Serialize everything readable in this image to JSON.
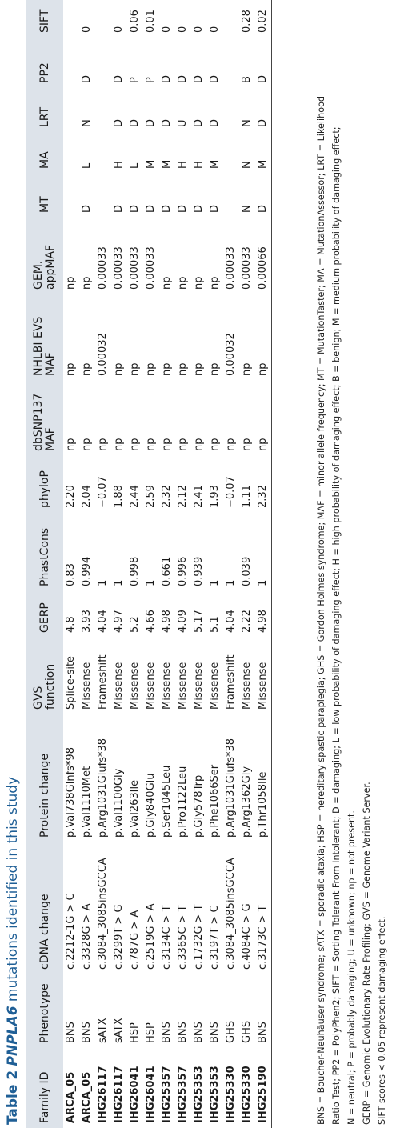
{
  "caption": {
    "label": "Table 2",
    "gene": "PNPLA6",
    "rest": "mutations identified in this study"
  },
  "columns": [
    "Family ID",
    "Phenotype",
    "cDNA change",
    "Protein change",
    "GVS function",
    "GERP",
    "PhastCons",
    "phyloP",
    "dbSNP137 MAF",
    "NHLBI EVS MAF",
    "GEM. appMAF",
    "MT",
    "MA",
    "LRT",
    "PP2",
    "SIFT"
  ],
  "rows": [
    [
      "ARCA_05",
      "BNS",
      "c.2212-1G > C",
      "p.Val738Glnfs*98",
      "Splice-site",
      "4.8",
      "0.83",
      "2.20",
      "np",
      "np",
      "np",
      "",
      "",
      "",
      "",
      ""
    ],
    [
      "ARCA_05",
      "BNS",
      "c.3328G > A",
      "p.Val1110Met",
      "Missense",
      "3.93",
      "0.994",
      "2.04",
      "np",
      "np",
      "np",
      "D",
      "L",
      "N",
      "D",
      "0"
    ],
    [
      "IHG26117",
      "sATX",
      "c.3084_3085insGCCA",
      "p.Arg1031Glufs*38",
      "Frameshift",
      "4.04",
      "1",
      "−0.07",
      "np",
      "0.00032",
      "0.00033",
      "",
      "",
      "",
      "",
      ""
    ],
    [
      "IHG26117",
      "sATX",
      "c.3299T > G",
      "p.Val1100Gly",
      "Missense",
      "4.97",
      "1",
      "1.88",
      "np",
      "np",
      "0.00033",
      "D",
      "H",
      "D",
      "D",
      "0"
    ],
    [
      "IHG26041",
      "HSP",
      "c.787G > A",
      "p.Val263Ile",
      "Missense",
      "5.2",
      "0.998",
      "2.44",
      "np",
      "np",
      "0.00033",
      "D",
      "L",
      "D",
      "P",
      "0.06"
    ],
    [
      "IHG26041",
      "HSP",
      "c.2519G > A",
      "p.Gly840Glu",
      "Missense",
      "4.66",
      "1",
      "2.59",
      "np",
      "np",
      "0.00033",
      "D",
      "M",
      "D",
      "P",
      "0.01"
    ],
    [
      "IHG25357",
      "BNS",
      "c.3134C > T",
      "p.Ser1045Leu",
      "Missense",
      "4.98",
      "0.661",
      "2.32",
      "np",
      "np",
      "np",
      "D",
      "M",
      "D",
      "D",
      "0"
    ],
    [
      "IHG25357",
      "BNS",
      "c.3365C > T",
      "p.Pro1122Leu",
      "Missense",
      "4.09",
      "0.996",
      "2.12",
      "np",
      "np",
      "np",
      "D",
      "H",
      "U",
      "D",
      "0"
    ],
    [
      "IHG25353",
      "BNS",
      "c.1732G > T",
      "p.Gly578Trp",
      "Missense",
      "5.17",
      "0.939",
      "2.41",
      "np",
      "np",
      "np",
      "D",
      "H",
      "D",
      "D",
      "0"
    ],
    [
      "IHG25353",
      "BNS",
      "c.3197T > C",
      "p.Phe1066Ser",
      "Missense",
      "5.1",
      "1",
      "1.93",
      "np",
      "np",
      "np",
      "D",
      "M",
      "D",
      "D",
      "0"
    ],
    [
      "IHG25330",
      "GHS",
      "c.3084_3085insGCCA",
      "p.Arg1031Glufs*38",
      "Frameshift",
      "4.04",
      "1",
      "−0.07",
      "np",
      "0.00032",
      "0.00033",
      "",
      "",
      "",
      "",
      ""
    ],
    [
      "IHG25330",
      "GHS",
      "c.4084C > G",
      "p.Arg1362Gly",
      "Missense",
      "2.22",
      "0.039",
      "1.11",
      "np",
      "np",
      "0.00033",
      "N",
      "N",
      "N",
      "B",
      "0.28"
    ],
    [
      "IHG25190",
      "BNS",
      "c.3173C > T",
      "p.Thr1058Ile",
      "Missense",
      "4.98",
      "1",
      "2.32",
      "np",
      "np",
      "0.00066",
      "D",
      "M",
      "D",
      "D",
      "0.02"
    ]
  ],
  "notes": [
    "BNS = Boucher-Neuhäuser syndrome; sATX = sporadic ataxia; HSP = hereditary spastic paraplegia; GHS = Gordon Holmes syndrome; MAF = minor allele frequency; MT = MutationTaster; MA = MutationAssessor; LRT = Likelihood",
    "Ratio Test; PP2 = PolyPhen2; SIFT = Sorting Tolerant From Intolerant; D = damaging; L = low probability of damaging effect; H = high probability of damaging effect; B = benign; M = medium probability of damaging effect;",
    "N = neutral; P = probably damaging; U = unknown; np = not present.",
    "GERP = Genomic Evolutionary Rate Profiling; GVS = Genome Variant Server.",
    "SIFT scores < 0.05 represent damaging effect."
  ]
}
